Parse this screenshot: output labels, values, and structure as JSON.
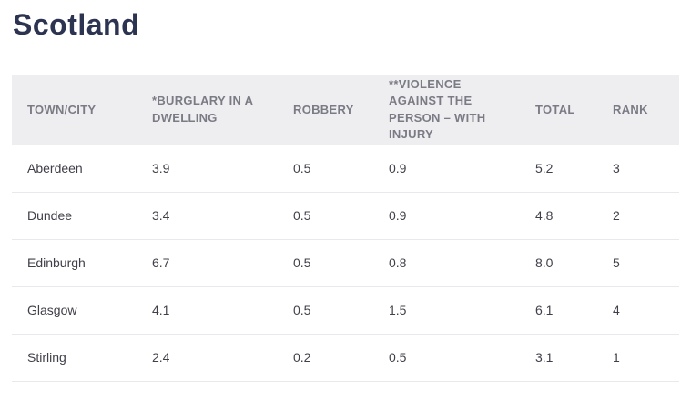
{
  "page": {
    "title": "Scotland"
  },
  "table": {
    "columns": [
      "TOWN/CITY",
      "*BURGLARY IN A DWELLING",
      "ROBBERY",
      "**VIOLENCE AGAINST THE PERSON – WITH INJURY",
      "TOTAL",
      "RANK"
    ],
    "rows": [
      [
        "Aberdeen",
        "3.9",
        "0.5",
        "0.9",
        "5.2",
        "3"
      ],
      [
        "Dundee",
        "3.4",
        "0.5",
        "0.9",
        "4.8",
        "2"
      ],
      [
        "Edinburgh",
        "6.7",
        "0.5",
        "0.8",
        "8.0",
        "5"
      ],
      [
        "Glasgow",
        "4.1",
        "0.5",
        "1.5",
        "6.1",
        "4"
      ],
      [
        "Stirling",
        "2.4",
        "0.2",
        "0.5",
        "3.1",
        "1"
      ]
    ]
  },
  "colors": {
    "title_text": "#2d3452",
    "header_text": "#7b7b85",
    "header_background": "#eeeef1",
    "body_text": "#40404a",
    "row_divider": "#e9e9ed",
    "page_background": "#ffffff"
  }
}
